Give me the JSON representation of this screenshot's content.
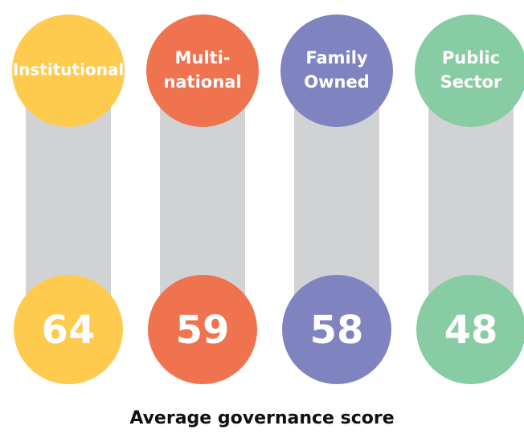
{
  "title": "Average governance score",
  "items": [
    {
      "label": [
        "Institutional"
      ],
      "value": 64,
      "color": "#fecb4e"
    },
    {
      "label": [
        "Multi-",
        "national"
      ],
      "value": 59,
      "color": "#f07350"
    },
    {
      "label": [
        "Family",
        "Owned"
      ],
      "value": 58,
      "color": "#7f84c0"
    },
    {
      "label": [
        "Public",
        "Sector"
      ],
      "value": 48,
      "color": "#88cca4"
    }
  ]
}
